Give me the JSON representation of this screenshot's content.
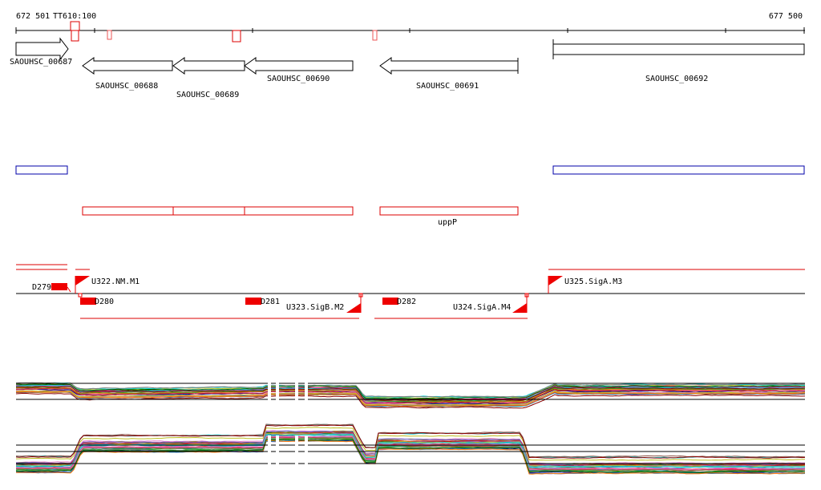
{
  "axis": {
    "start_label": "672 501",
    "end_label": "677 500",
    "marker_label": "TT610:100"
  },
  "genes": [
    {
      "name": "SAOUHSC_00687",
      "strand": "+"
    },
    {
      "name": "SAOUHSC_00688",
      "strand": "-"
    },
    {
      "name": "SAOUHSC_00689",
      "strand": "-"
    },
    {
      "name": "SAOUHSC_00690",
      "strand": "-"
    },
    {
      "name": "SAOUHSC_00691",
      "strand": "-"
    },
    {
      "name": "SAOUHSC_00692",
      "strand": "none"
    }
  ],
  "operons": [
    {
      "name": "uppP"
    }
  ],
  "regulation": {
    "downstream_marks": [
      "D279",
      "D280",
      "D281",
      "D282"
    ],
    "promoters": [
      "U322.NM.M1",
      "U323.SigB.M2",
      "U324.SigA.M4",
      "U325.SigA.M3"
    ]
  },
  "colors": {
    "gene_outline": "#000000",
    "blue_region": "#0000aa",
    "red_feature": "#dd0000",
    "axis": "#000000"
  }
}
